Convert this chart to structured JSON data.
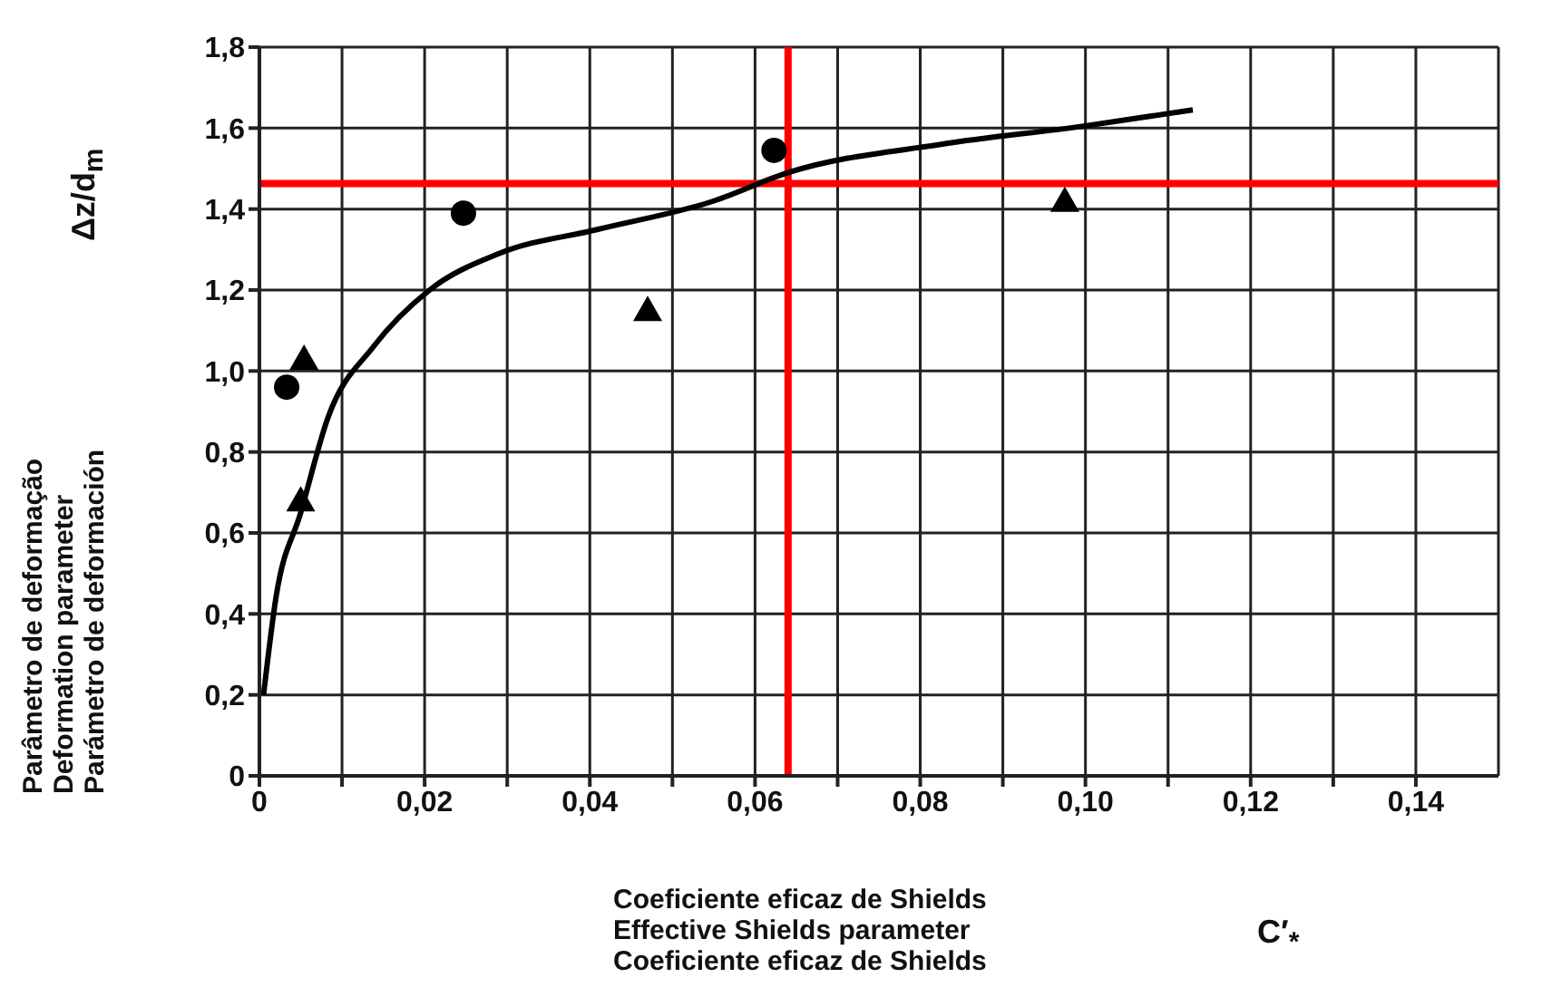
{
  "chart_data": {
    "type": "scatter",
    "xlabel": "Coeficiente eficaz de Shields\nEffective Shields parameter\nCoeficiente eficaz de Shields",
    "ylabel": "Parâmetro de deformação\nDeformation parameter\nParámetro de deformación",
    "annotations": [
      "Δz/d$_{m}$",
      "C′$_{*}$"
    ],
    "xlim": [
      0,
      0.15
    ],
    "xticks": [
      {
        "value": 0,
        "label": "0"
      },
      {
        "value": 0.01,
        "label": null
      },
      {
        "value": 0.02,
        "label": "0,02"
      },
      {
        "value": 0.03,
        "label": null
      },
      {
        "value": 0.04,
        "label": "0,04"
      },
      {
        "value": 0.05,
        "label": null
      },
      {
        "value": 0.06,
        "label": "0,06"
      },
      {
        "value": 0.07,
        "label": null
      },
      {
        "value": 0.08,
        "label": "0,08"
      },
      {
        "value": 0.09,
        "label": null
      },
      {
        "value": 0.1,
        "label": "0,10"
      },
      {
        "value": 0.11,
        "label": null
      },
      {
        "value": 0.12,
        "label": "0,12"
      },
      {
        "value": 0.13,
        "label": null
      },
      {
        "value": 0.14,
        "label": "0,14"
      }
    ],
    "ylim": [
      0,
      1.8
    ],
    "yticks": [
      {
        "value": 0,
        "label": "0"
      },
      {
        "value": 0.2,
        "label": "0,2"
      },
      {
        "value": 0.4,
        "label": "0,4"
      },
      {
        "value": 0.6,
        "label": "0,6"
      },
      {
        "value": 0.8,
        "label": "0,8"
      },
      {
        "value": 1,
        "label": "1,0"
      },
      {
        "value": 1.2,
        "label": "1,2"
      },
      {
        "value": 1.4,
        "label": "1,4"
      },
      {
        "value": 1.6,
        "label": "1,6"
      },
      {
        "value": 1.8,
        "label": "1,8"
      }
    ],
    "grid": true,
    "series": [
      {
        "marker": "circle",
        "color": "#000000",
        "x": [
          0.0033,
          0.0247,
          0.0623
        ],
        "values": [
          0.96,
          1.39,
          1.545
        ]
      },
      {
        "marker": "triangle",
        "color": "#000000",
        "x": [
          0.0054,
          0.005,
          0.047,
          0.0975
        ],
        "values": [
          1.03,
          0.68,
          1.15,
          1.42
        ]
      },
      {
        "type": "line",
        "marker": "none",
        "color": "#000000",
        "x": [
          0.0005,
          0.002,
          0.005,
          0.0083,
          0.0138,
          0.0206,
          0.029,
          0.041,
          0.055,
          0.064,
          0.0825,
          0.0998,
          0.113
        ],
        "values": [
          0.2,
          0.44,
          0.65,
          0.885,
          1.06,
          1.2,
          1.29,
          1.35,
          1.42,
          1.49,
          1.56,
          1.605,
          1.645
        ]
      }
    ],
    "ref_lines": [
      {
        "axis": "x",
        "value": 0.064,
        "color": "#ff0000"
      },
      {
        "axis": "y",
        "value": 1.463,
        "color": "#ff0000"
      }
    ]
  }
}
